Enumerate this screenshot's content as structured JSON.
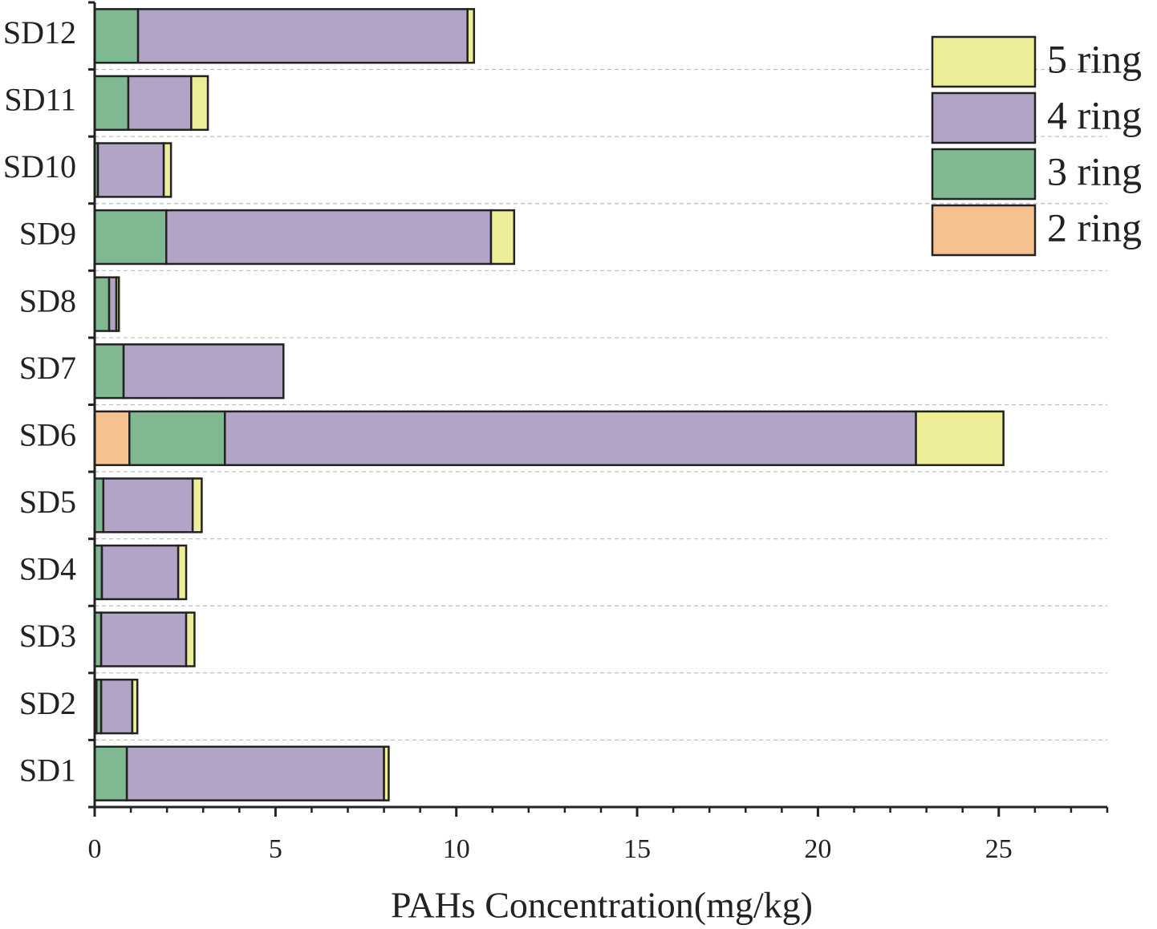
{
  "chart_data": {
    "type": "stacked-barh",
    "x_label": "PAHs Concentration(mg/kg)",
    "categories": [
      "SD1",
      "SD2",
      "SD3",
      "SD4",
      "SD5",
      "SD6",
      "SD7",
      "SD8",
      "SD9",
      "SD10",
      "SD11",
      "SD12"
    ],
    "series": [
      {
        "name": "2 ring",
        "color": "#f5c18f",
        "values": [
          0,
          0.05,
          0,
          0,
          0,
          0.96,
          0,
          0,
          0,
          0,
          0,
          0
        ]
      },
      {
        "name": "3 ring",
        "color": "#80b991",
        "values": [
          0.89,
          0.13,
          0.18,
          0.2,
          0.24,
          2.64,
          0.8,
          0.4,
          1.98,
          0.09,
          0.93,
          1.2
        ]
      },
      {
        "name": "4 ring",
        "color": "#b1a4c6",
        "values": [
          7.11,
          0.86,
          2.35,
          2.11,
          2.47,
          19.11,
          4.42,
          0.2,
          8.98,
          1.82,
          1.74,
          9.11
        ]
      },
      {
        "name": "5 ring",
        "color": "#eeee99",
        "values": [
          0.13,
          0.14,
          0.23,
          0.22,
          0.25,
          2.42,
          0,
          0.07,
          0.64,
          0.2,
          0.46,
          0.18
        ]
      }
    ],
    "xlim": [
      0,
      28
    ],
    "xticks": [
      0,
      5,
      10,
      15,
      20,
      25
    ],
    "xticks_minor": [
      1,
      2,
      3,
      4,
      6,
      7,
      8,
      9,
      11,
      12,
      13,
      14,
      16,
      17,
      18,
      19,
      21,
      22,
      23,
      24,
      26,
      27,
      28
    ],
    "grid": true,
    "legend": "upper right"
  }
}
